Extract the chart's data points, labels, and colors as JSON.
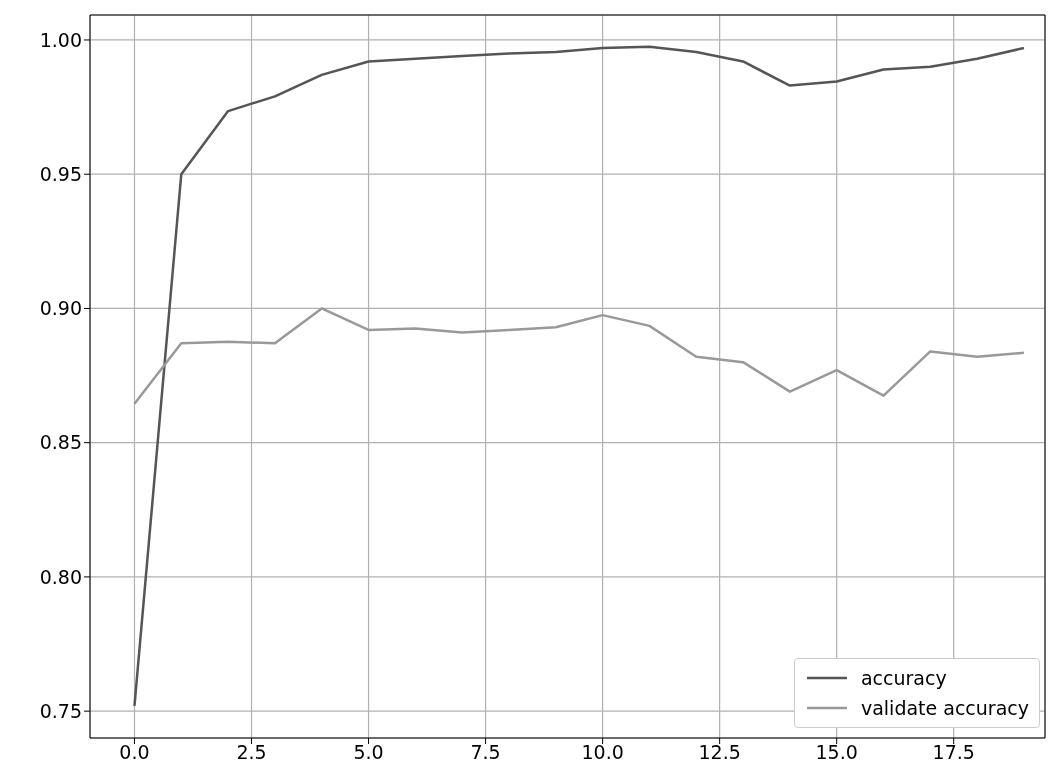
{
  "chart_data": {
    "type": "line",
    "x": [
      0,
      1,
      2,
      3,
      4,
      5,
      6,
      7,
      8,
      9,
      10,
      11,
      12,
      13,
      14,
      15,
      16,
      17,
      18,
      19
    ],
    "series": [
      {
        "name": "accuracy",
        "color": "#555555",
        "values": [
          0.752,
          0.95,
          0.9735,
          0.979,
          0.987,
          0.992,
          0.993,
          0.994,
          0.995,
          0.9955,
          0.997,
          0.9975,
          0.9955,
          0.992,
          0.983,
          0.9845,
          0.989,
          0.99,
          0.993,
          0.997
        ]
      },
      {
        "name": "validate accuracy",
        "color": "#999999",
        "values": [
          0.8645,
          0.887,
          0.8876,
          0.887,
          0.9,
          0.892,
          0.8925,
          0.891,
          0.892,
          0.893,
          0.8975,
          0.8935,
          0.882,
          0.88,
          0.869,
          0.877,
          0.8675,
          0.884,
          0.882,
          0.8835
        ]
      }
    ],
    "xlim": [
      -0.95,
      19.45
    ],
    "xticks": [
      {
        "value": 0,
        "label": "0.0"
      },
      {
        "value": 2.5,
        "label": "2.5"
      },
      {
        "value": 5,
        "label": "5.0"
      },
      {
        "value": 7.5,
        "label": "7.5"
      },
      {
        "value": 10,
        "label": "10.0"
      },
      {
        "value": 12.5,
        "label": "12.5"
      },
      {
        "value": 15,
        "label": "15.0"
      },
      {
        "value": 17.5,
        "label": "17.5"
      }
    ],
    "ylim": [
      0.74,
      1.0093
    ],
    "yticks": [
      {
        "value": 0.75,
        "label": "0.75"
      },
      {
        "value": 0.8,
        "label": "0.80"
      },
      {
        "value": 0.85,
        "label": "0.85"
      },
      {
        "value": 0.9,
        "label": "0.90"
      },
      {
        "value": 0.95,
        "label": "0.95"
      },
      {
        "value": 1.0,
        "label": "1.00"
      }
    ],
    "grid": true,
    "legend": "bottom right"
  }
}
